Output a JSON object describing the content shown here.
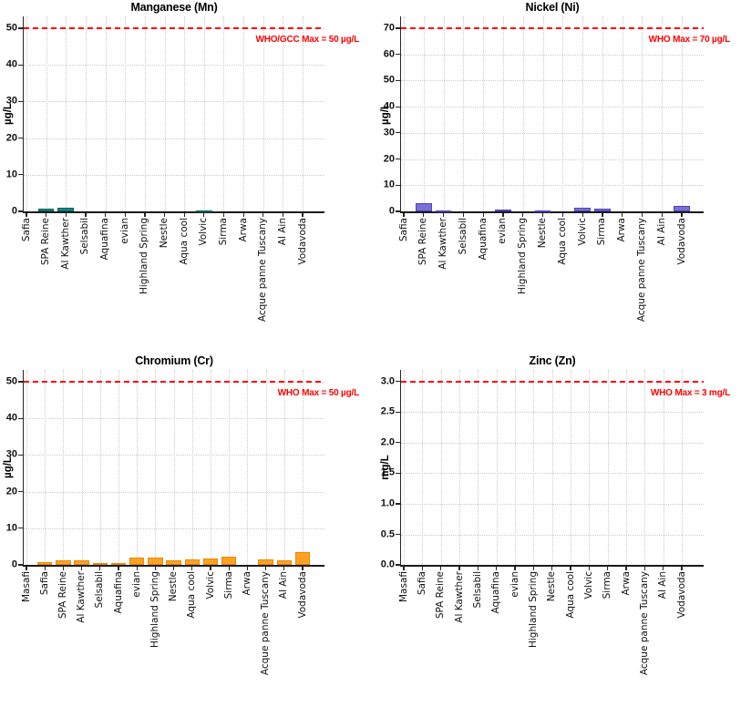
{
  "figure": {
    "background": "#ffffff"
  },
  "chart_data": [
    {
      "id": "manganese",
      "type": "bar",
      "title": "Manganese (Mn)",
      "ylabel": "µg/L",
      "categories": [
        "Safia",
        "SPA Reine",
        "Al Kawther",
        "Selsabil",
        "Aquafina",
        "evian",
        "Highland Spring",
        "Nestle",
        "Aqua cool",
        "Volvic",
        "Sirma",
        "Arwa",
        "Acque panne Tuscany",
        "Al Ain",
        "Vodavoda"
      ],
      "values": [
        0,
        0.8,
        0.9,
        0,
        0,
        0,
        0,
        0,
        0,
        0.3,
        0,
        0,
        0,
        0,
        0
      ],
      "yticks": [
        0,
        10,
        20,
        30,
        40,
        50
      ],
      "ytick_labels": [
        "0",
        "10",
        "20",
        "30",
        "40",
        "50"
      ],
      "ylim": [
        0,
        53.2
      ],
      "grid": "dotted",
      "bar_color": "#0e8c86",
      "bar_edge_color": "#09625d",
      "limit_line": {
        "value": 50,
        "label": "WHO/GCC Max = 50 µg/L",
        "color": "#ff0000"
      }
    },
    {
      "id": "nickel",
      "type": "bar",
      "title": "Nickel (Ni)",
      "ylabel": "µg/L",
      "categories": [
        "Safia",
        "SPA Reine",
        "Al Kawther",
        "Selsabil",
        "Aquafina",
        "evian",
        "Highland Spring",
        "Nestle",
        "Aqua cool",
        "Volvic",
        "Sirma",
        "Arwa",
        "Acque panne Tuscany",
        "Al Ain",
        "Vodavoda"
      ],
      "values": [
        0,
        3.3,
        0.4,
        0,
        0,
        0.7,
        0,
        0.4,
        0,
        1.5,
        1.2,
        0,
        0,
        0,
        2.2
      ],
      "yticks": [
        0,
        10,
        20,
        30,
        40,
        50,
        60,
        70
      ],
      "ytick_labels": [
        "0",
        "10",
        "20",
        "30",
        "40",
        "50",
        "60",
        "70"
      ],
      "ylim": [
        0,
        74.5
      ],
      "grid": "dotted",
      "bar_color": "#7a6ed8",
      "bar_edge_color": "#4f42b5",
      "limit_line": {
        "value": 70,
        "label": "WHO Max = 70 µg/L",
        "color": "#ff0000"
      }
    },
    {
      "id": "chromium",
      "type": "bar",
      "title": "Chromium (Cr)",
      "ylabel": "µg/L",
      "categories": [
        "Masafi",
        "Safia",
        "SPA Reine",
        "Al Kawther",
        "Selsabil",
        "Aquafina",
        "evian",
        "Highland Spring",
        "Nestle",
        "Aqua cool",
        "Volvic",
        "Sirma",
        "Arwa",
        "Acque panne Tuscany",
        "Al Ain",
        "Vodavoda"
      ],
      "values": [
        0,
        0.8,
        1.2,
        1.2,
        0.4,
        0.5,
        1.9,
        2.1,
        1.3,
        1.5,
        1.7,
        2.3,
        0,
        1.5,
        1.3,
        3.6
      ],
      "yticks": [
        0,
        10,
        20,
        30,
        40,
        50
      ],
      "ytick_labels": [
        "0",
        "10",
        "20",
        "30",
        "40",
        "50"
      ],
      "ylim": [
        0,
        53.2
      ],
      "grid": "dotted",
      "bar_color": "#ffa223",
      "bar_edge_color": "#e68a00",
      "limit_line": {
        "value": 50,
        "label": "WHO Max = 50 µg/L",
        "color": "#ff0000"
      }
    },
    {
      "id": "zinc",
      "type": "bar",
      "title": "Zinc (Zn)",
      "ylabel": "mg/L",
      "categories": [
        "Masafi",
        "Safia",
        "SPA Reine",
        "Al Kawther",
        "Selsabil",
        "Aquafina",
        "evian",
        "Highland Spring",
        "Nestle",
        "Aqua cool",
        "Volvic",
        "Sirma",
        "Arwa",
        "Acque panne Tuscany",
        "Al Ain",
        "Vodavoda"
      ],
      "values": [
        0,
        0,
        0,
        0,
        0,
        0,
        0,
        0,
        0,
        0,
        0,
        0,
        0,
        0,
        0,
        0
      ],
      "yticks": [
        0,
        0.5,
        1.0,
        1.5,
        2.0,
        2.5,
        3.0
      ],
      "ytick_labels": [
        "0.0",
        "0.5",
        "1.0",
        "1.5",
        "2.0",
        "2.5",
        "3.0"
      ],
      "ylim": [
        0,
        3.19
      ],
      "grid": "dotted",
      "bar_color": "#888888",
      "bar_edge_color": "#555555",
      "limit_line": {
        "value": 3,
        "label": "WHO Max = 3 mg/L",
        "color": "#ff0000"
      }
    }
  ]
}
